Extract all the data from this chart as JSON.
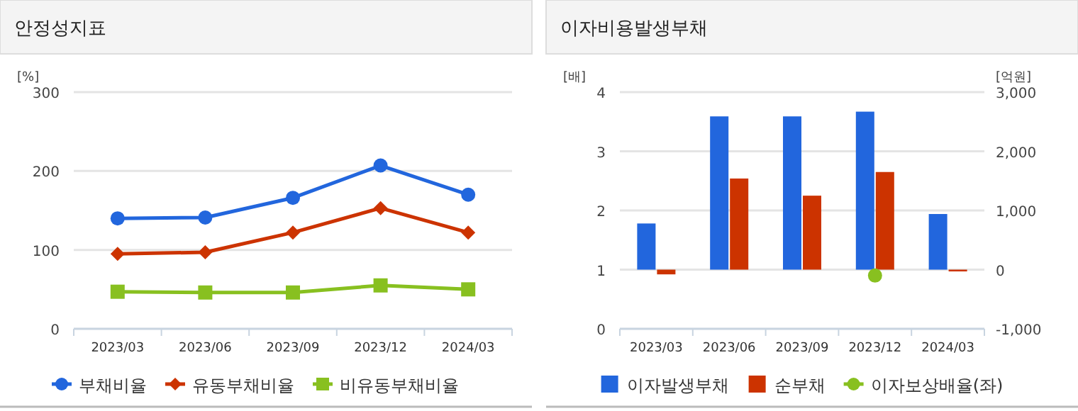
{
  "chart_data": [
    {
      "type": "line",
      "title": "안정성지표",
      "ylabel": "[%]",
      "categories": [
        "2023/03",
        "2023/06",
        "2023/09",
        "2023/12",
        "2024/03"
      ],
      "ylim": [
        0,
        300
      ],
      "yticks": [
        0,
        100,
        200,
        300
      ],
      "grid": "y",
      "legend": "bottom",
      "series": [
        {
          "name": "부채비율",
          "color": "#2266dd",
          "marker": "circle",
          "values": [
            140,
            141,
            166,
            207,
            170
          ]
        },
        {
          "name": "유동부채비율",
          "color": "#cc3300",
          "marker": "diamond",
          "values": [
            95,
            97,
            122,
            153,
            122
          ]
        },
        {
          "name": "비유동부채비율",
          "color": "#88c020",
          "marker": "square",
          "values": [
            47,
            46,
            46,
            55,
            50
          ]
        }
      ]
    },
    {
      "type": "bar",
      "title": "이자비용발생부채",
      "ylabel": "[배]",
      "y2label": "[억원]",
      "categories": [
        "2023/03",
        "2023/06",
        "2023/09",
        "2023/12",
        "2024/03"
      ],
      "ylim": [
        0,
        4
      ],
      "yticks": [
        0,
        1,
        2,
        3,
        4
      ],
      "y2lim": [
        -1000,
        3000
      ],
      "y2ticks": [
        {
          "value": -1000,
          "label": "-1,000"
        },
        0,
        {
          "value": 1000,
          "label": "1,000"
        },
        {
          "value": 2000,
          "label": "2,000"
        },
        {
          "value": 3000,
          "label": "3,000"
        }
      ],
      "grid": "y",
      "legend": "bottom",
      "series": [
        {
          "name": "이자발생부채",
          "color": "#2266dd",
          "axis": "y2",
          "values": [
            780,
            2590,
            2590,
            2670,
            940
          ]
        },
        {
          "name": "순부채",
          "color": "#cc3300",
          "axis": "y2",
          "values": [
            -80,
            1540,
            1250,
            1650,
            -30
          ]
        },
        {
          "name": "이자보상배율(좌)",
          "type": "scatter",
          "color": "#88c020",
          "marker": "circle",
          "values": [
            null,
            null,
            null,
            0.9,
            null
          ]
        }
      ]
    }
  ]
}
